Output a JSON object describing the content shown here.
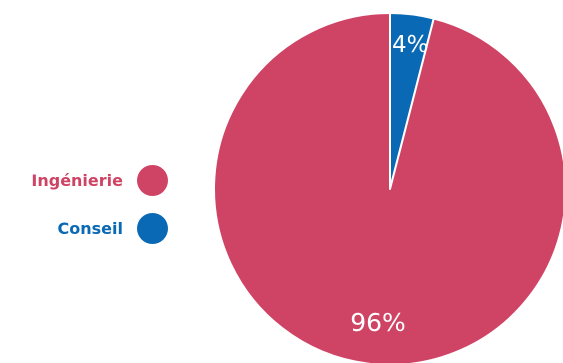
{
  "chart_data": {
    "type": "pie",
    "categories": [
      "Ingénierie",
      "Conseil"
    ],
    "values": [
      96,
      4
    ],
    "data_labels": [
      "96%",
      "4%"
    ],
    "colors": [
      "#cf4464",
      "#0a69b4"
    ],
    "legend": {
      "placement": "left",
      "entries": [
        "Ingénierie",
        "Conseil"
      ]
    }
  }
}
